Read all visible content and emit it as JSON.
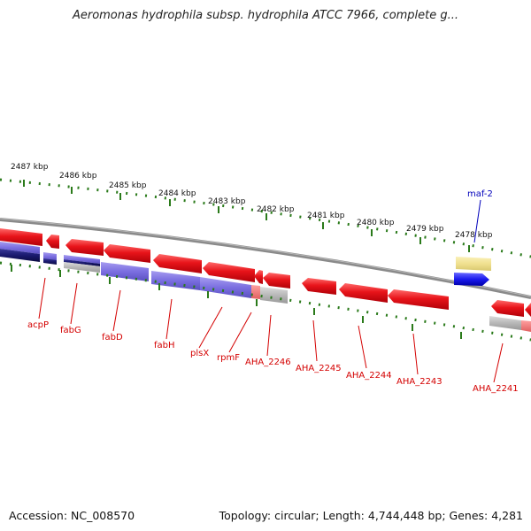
{
  "title": "Aeromonas hydrophila subsp. hydrophila ATCC 7966, complete g...",
  "footer": {
    "accession": "Accession: NC_008570",
    "topology": "Topology: circular; Length: 4,744,448 bp; Genes: 4,281"
  },
  "ruler": [
    "2487 kbp",
    "2486 kbp",
    "2485 kbp",
    "2484 kbp",
    "2483 kbp",
    "2482 kbp",
    "2481 kbp",
    "2480 kbp",
    "2479 kbp",
    "2478 kbp"
  ],
  "gene_labels": [
    "acpP",
    "fabG",
    "fabD",
    "fabH",
    "plsX",
    "rpmF",
    "AHA_2246",
    "AHA_2245",
    "AHA_2244",
    "AHA_2243",
    "AHA_2241",
    "maf-2"
  ],
  "colors": {
    "backbone": "#8a8a8a",
    "tick": "#2a7a1a",
    "gene_reverse": "#e8141a",
    "gene_forward": "#1a1aee",
    "label": "#d40000",
    "label_forward": "#0000bb",
    "cds_track": "#7a6ee0",
    "cds_track_dark": "#1a1a6e",
    "neutral_track": "#b8b8b8",
    "forward_track": "#f0e090"
  }
}
